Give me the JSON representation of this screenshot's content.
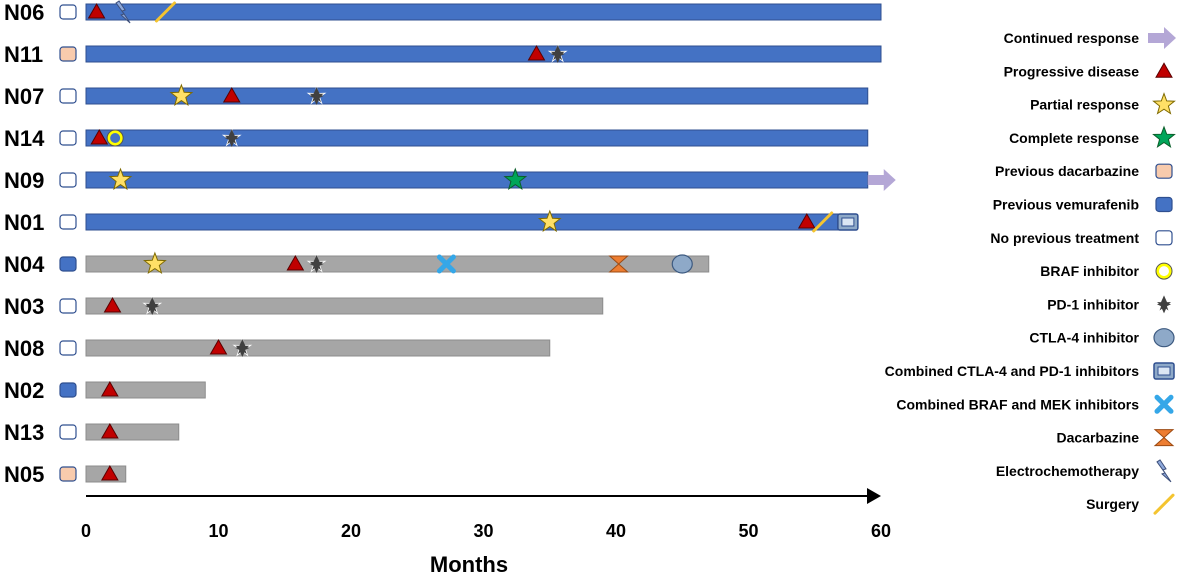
{
  "chart_data": {
    "type": "swimmer",
    "xlabel": "Months",
    "x_ticks": [
      0,
      10,
      20,
      30,
      40,
      50,
      60
    ],
    "xlim": [
      0,
      60
    ],
    "colors": {
      "blue_bar": "#4472C4",
      "gray_bar": "#A6A6A6",
      "bar_edge": "#2F4F8F",
      "progressive": "#C00000",
      "star_yellow": "#FFE066",
      "star_green": "#00A65A",
      "continued": "#B4A7D6",
      "prev_dacarbazine": "#F8CBAD",
      "prev_vemurafenib": "#4472C4",
      "braf": "#FFFF00",
      "pd1": "#404040",
      "ctla4": "#8EA9C8",
      "combo_ctla_pd1": "#8EA9C8",
      "combo_braf_mek": "#35A7E8",
      "dacarbazine": "#ED7D31",
      "electro": "#8EA9DB",
      "surgery": "#F4C430"
    },
    "patients": [
      {
        "id": "N06",
        "prior": "none",
        "bar": "blue",
        "end": 60,
        "events": [
          {
            "type": "progressive",
            "x": 0.8
          },
          {
            "type": "electro",
            "x": 2.8
          },
          {
            "type": "surgery",
            "x": 6
          }
        ]
      },
      {
        "id": "N11",
        "prior": "dacarbazine",
        "bar": "blue",
        "end": 60,
        "events": [
          {
            "type": "progressive",
            "x": 34
          },
          {
            "type": "pd1",
            "x": 35.6
          }
        ]
      },
      {
        "id": "N07",
        "prior": "none",
        "bar": "blue",
        "end": 59,
        "events": [
          {
            "type": "partial",
            "x": 7.2
          },
          {
            "type": "progressive",
            "x": 11
          },
          {
            "type": "pd1",
            "x": 17.4
          }
        ]
      },
      {
        "id": "N14",
        "prior": "none",
        "bar": "blue",
        "end": 59,
        "events": [
          {
            "type": "progressive",
            "x": 1
          },
          {
            "type": "braf",
            "x": 2.2
          },
          {
            "type": "pd1",
            "x": 11
          }
        ]
      },
      {
        "id": "N09",
        "prior": "none",
        "bar": "blue",
        "end": 59,
        "events": [
          {
            "type": "partial",
            "x": 2.6
          },
          {
            "type": "complete",
            "x": 32.4
          },
          {
            "type": "continued",
            "x": 59.5
          }
        ]
      },
      {
        "id": "N01",
        "prior": "none",
        "bar": "blue",
        "end": 58,
        "events": [
          {
            "type": "partial",
            "x": 35
          },
          {
            "type": "progressive",
            "x": 54.4
          },
          {
            "type": "surgery",
            "x": 55.6
          },
          {
            "type": "combo_ctla_pd1",
            "x": 57.5
          }
        ]
      },
      {
        "id": "N04",
        "prior": "vemurafenib",
        "bar": "gray",
        "end": 47,
        "events": [
          {
            "type": "partial",
            "x": 5.2
          },
          {
            "type": "progressive",
            "x": 15.8
          },
          {
            "type": "pd1",
            "x": 17.4
          },
          {
            "type": "combo_braf_mek",
            "x": 27.2
          },
          {
            "type": "dacarbazine",
            "x": 40.2
          },
          {
            "type": "ctla4",
            "x": 45
          }
        ]
      },
      {
        "id": "N03",
        "prior": "none",
        "bar": "gray",
        "end": 39,
        "events": [
          {
            "type": "progressive",
            "x": 2
          },
          {
            "type": "pd1",
            "x": 5
          }
        ]
      },
      {
        "id": "N08",
        "prior": "none",
        "bar": "gray",
        "end": 35,
        "events": [
          {
            "type": "progressive",
            "x": 10
          },
          {
            "type": "pd1",
            "x": 11.8
          }
        ]
      },
      {
        "id": "N02",
        "prior": "vemurafenib",
        "bar": "gray",
        "end": 9,
        "events": [
          {
            "type": "progressive",
            "x": 1.8
          }
        ]
      },
      {
        "id": "N13",
        "prior": "none",
        "bar": "gray",
        "end": 7,
        "events": [
          {
            "type": "progressive",
            "x": 1.8
          }
        ]
      },
      {
        "id": "N05",
        "prior": "dacarbazine",
        "bar": "gray",
        "end": 3,
        "events": [
          {
            "type": "progressive",
            "x": 1.8
          }
        ]
      }
    ],
    "legend": [
      {
        "type": "continued",
        "label": "Continued response"
      },
      {
        "type": "progressive",
        "label": "Progressive disease"
      },
      {
        "type": "partial",
        "label": "Partial response"
      },
      {
        "type": "complete",
        "label": "Complete response"
      },
      {
        "type": "prev_dacarbazine",
        "label": "Previous dacarbazine"
      },
      {
        "type": "prev_vemurafenib",
        "label": "Previous vemurafenib"
      },
      {
        "type": "prev_none",
        "label": "No previous treatment"
      },
      {
        "type": "braf",
        "label": "BRAF inhibitor"
      },
      {
        "type": "pd1",
        "label": "PD-1 inhibitor"
      },
      {
        "type": "ctla4",
        "label": "CTLA-4  inhibitor"
      },
      {
        "type": "combo_ctla_pd1",
        "label": "Combined CTLA-4 and PD-1 inhibitors"
      },
      {
        "type": "combo_braf_mek",
        "label": "Combined BRAF and MEK inhibitors"
      },
      {
        "type": "dacarbazine",
        "label": "Dacarbazine"
      },
      {
        "type": "electro",
        "label": "Electrochemotherapy"
      },
      {
        "type": "surgery",
        "label": "Surgery"
      }
    ]
  }
}
